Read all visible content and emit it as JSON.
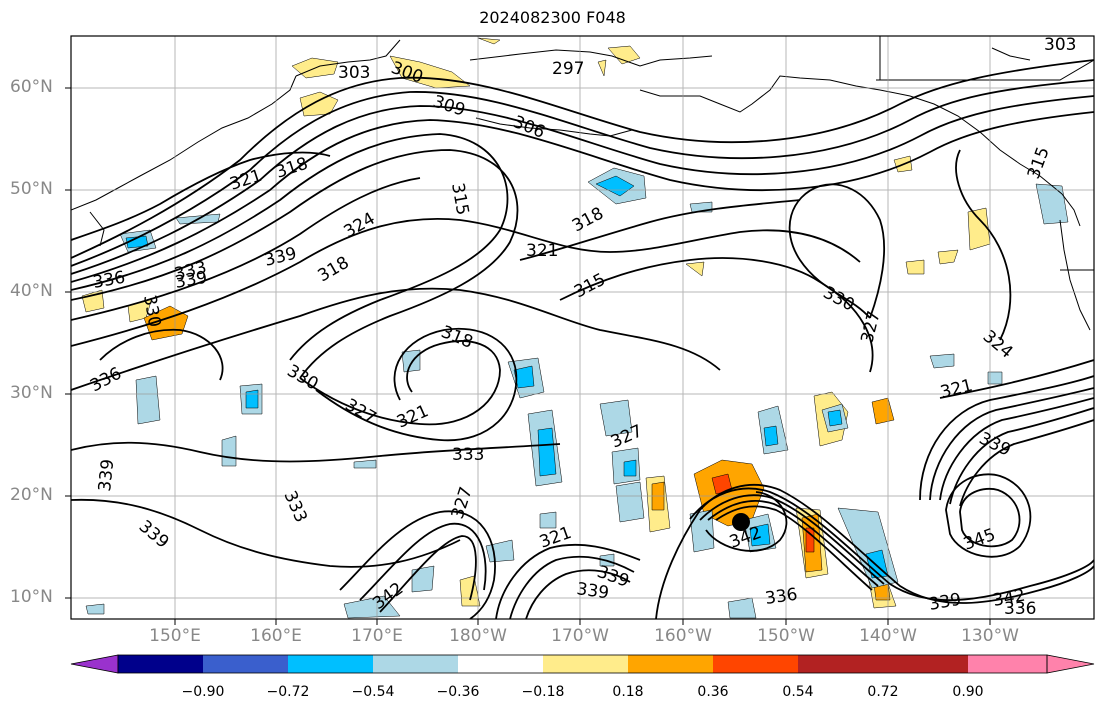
{
  "title": "2024082300 F048",
  "lat_labels": [
    "60°N",
    "50°N",
    "40°N",
    "30°N",
    "20°N",
    "10°N"
  ],
  "lon_labels": [
    "150°E",
    "160°E",
    "170°E",
    "180°W",
    "170°W",
    "160°W",
    "150°W",
    "140°W",
    "130°W"
  ],
  "colorbar": {
    "ticks": [
      "−0.90",
      "−0.72",
      "−0.54",
      "−0.36",
      "−0.18",
      "0.18",
      "0.36",
      "0.54",
      "0.72",
      "0.90"
    ],
    "colors": [
      "#9a32cd",
      "#00008b",
      "#3a5fcd",
      "#00bfff",
      "#add8e6",
      "#ffffff",
      "#ffec8b",
      "#ffa500",
      "#ff4500",
      "#b22222",
      "#ff82ab"
    ]
  },
  "contour_labels": [
    "303",
    "300",
    "297",
    "303",
    "309",
    "306",
    "321",
    "318",
    "315",
    "324",
    "318",
    "339",
    "333",
    "336",
    "339",
    "318",
    "321",
    "315",
    "330",
    "327",
    "324",
    "321",
    "318",
    "330",
    "336",
    "327",
    "321",
    "333",
    "327",
    "339",
    "339",
    "333",
    "327",
    "321",
    "339",
    "342",
    "336",
    "339",
    "342",
    "336",
    "339",
    "345",
    "342",
    "339",
    "330",
    "315"
  ],
  "marker": {
    "type": "storm-center-dot"
  }
}
